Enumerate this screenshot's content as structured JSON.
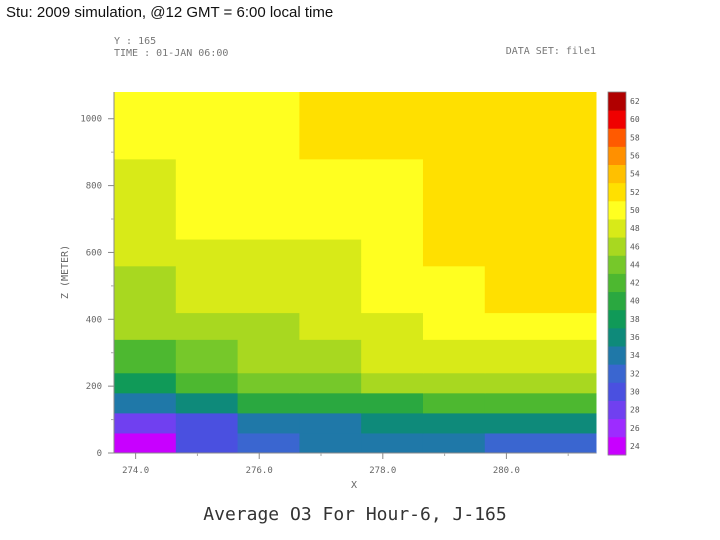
{
  "slide_title": "Stu: 2009 simulation, @12 GMT = 6:00 local time",
  "chart_data": {
    "type": "heatmap",
    "title": "Average O3 For Hour-6, J-165",
    "info_left": [
      "Y : 165",
      "TIME : 01-JAN 06:00"
    ],
    "info_right": "DATA SET: file1",
    "xlabel": "X",
    "ylabel": "Z (METER)",
    "x_ticks": [
      "274.0",
      "276.0",
      "278.0",
      "280.0"
    ],
    "y_ticks": [
      "0",
      "200",
      "400",
      "600",
      "800",
      "1000"
    ],
    "colorbar_labels": [
      "24",
      "26",
      "28",
      "30",
      "32",
      "34",
      "36",
      "38",
      "40",
      "42",
      "44",
      "46",
      "48",
      "50",
      "52",
      "54",
      "56",
      "58",
      "60",
      "62"
    ],
    "colorbar_colors": [
      "#c800ff",
      "#9d2cff",
      "#7040f0",
      "#4a50e0",
      "#3a66d0",
      "#1f78a8",
      "#0e8a7a",
      "#109a58",
      "#2aa840",
      "#4db830",
      "#76c82a",
      "#a8d820",
      "#d8ea18",
      "#ffff20",
      "#ffe000",
      "#ffc000",
      "#ff9000",
      "#ff5a00",
      "#f00000",
      "#b00000"
    ],
    "x_edges": [
      0,
      1,
      2,
      3,
      4,
      5,
      6,
      7.8
    ],
    "z_edges": [
      0,
      60,
      120,
      180,
      240,
      340,
      420,
      560,
      640,
      880,
      1080
    ],
    "grid": [
      [
        24,
        29,
        32,
        33,
        34,
        34,
        31
      ],
      [
        28,
        30,
        33,
        34,
        36,
        36,
        35
      ],
      [
        34,
        36,
        39,
        40,
        40,
        41,
        42
      ],
      [
        38,
        42,
        43,
        44,
        45,
        46,
        46
      ],
      [
        41,
        43,
        45,
        46,
        47,
        47,
        47
      ],
      [
        45,
        45,
        46,
        47,
        48,
        49,
        49
      ],
      [
        46,
        47,
        47,
        48,
        49,
        50,
        51
      ],
      [
        47,
        47,
        48,
        48,
        49,
        51,
        51
      ],
      [
        48,
        49,
        49,
        50,
        50,
        51,
        51
      ],
      [
        50,
        50,
        50,
        51,
        51,
        51,
        51
      ]
    ]
  }
}
